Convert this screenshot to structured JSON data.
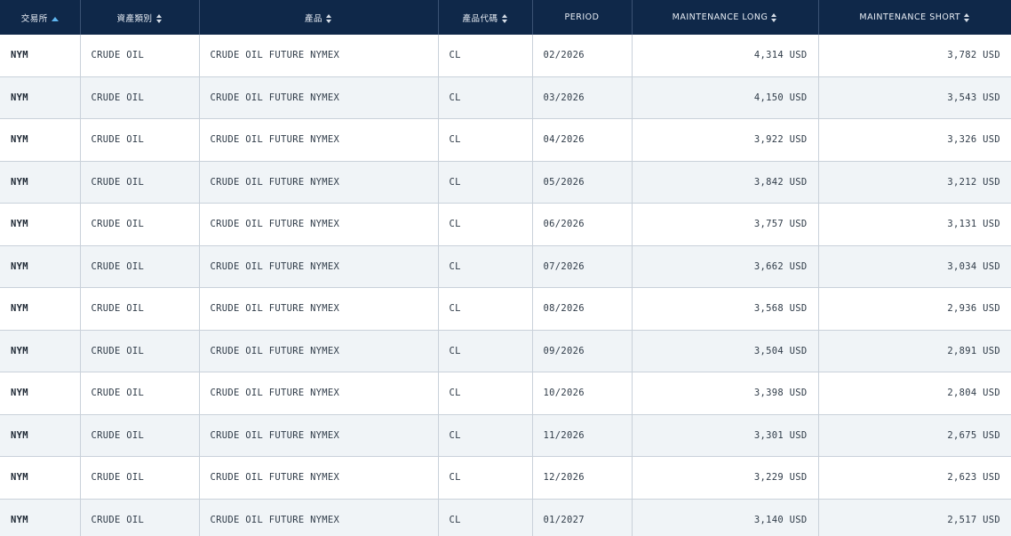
{
  "table": {
    "headers": [
      {
        "label": "交易所",
        "sort": "asc"
      },
      {
        "label": "資產類別",
        "sort": "both"
      },
      {
        "label": "產品",
        "sort": "both"
      },
      {
        "label": "產品代碼",
        "sort": "both"
      },
      {
        "label": "PERIOD",
        "sort": "none"
      },
      {
        "label": "MAINTENANCE LONG",
        "sort": "both"
      },
      {
        "label": "MAINTENANCE SHORT",
        "sort": "both"
      }
    ],
    "rows": [
      {
        "exchange": "NYM",
        "asset": "CRUDE OIL",
        "product": "CRUDE OIL FUTURE NYMEX",
        "code": "CL",
        "period": "02/2026",
        "long": "4,314 USD",
        "short": "3,782 USD"
      },
      {
        "exchange": "NYM",
        "asset": "CRUDE OIL",
        "product": "CRUDE OIL FUTURE NYMEX",
        "code": "CL",
        "period": "03/2026",
        "long": "4,150 USD",
        "short": "3,543 USD"
      },
      {
        "exchange": "NYM",
        "asset": "CRUDE OIL",
        "product": "CRUDE OIL FUTURE NYMEX",
        "code": "CL",
        "period": "04/2026",
        "long": "3,922 USD",
        "short": "3,326 USD"
      },
      {
        "exchange": "NYM",
        "asset": "CRUDE OIL",
        "product": "CRUDE OIL FUTURE NYMEX",
        "code": "CL",
        "period": "05/2026",
        "long": "3,842 USD",
        "short": "3,212 USD"
      },
      {
        "exchange": "NYM",
        "asset": "CRUDE OIL",
        "product": "CRUDE OIL FUTURE NYMEX",
        "code": "CL",
        "period": "06/2026",
        "long": "3,757 USD",
        "short": "3,131 USD"
      },
      {
        "exchange": "NYM",
        "asset": "CRUDE OIL",
        "product": "CRUDE OIL FUTURE NYMEX",
        "code": "CL",
        "period": "07/2026",
        "long": "3,662 USD",
        "short": "3,034 USD"
      },
      {
        "exchange": "NYM",
        "asset": "CRUDE OIL",
        "product": "CRUDE OIL FUTURE NYMEX",
        "code": "CL",
        "period": "08/2026",
        "long": "3,568 USD",
        "short": "2,936 USD"
      },
      {
        "exchange": "NYM",
        "asset": "CRUDE OIL",
        "product": "CRUDE OIL FUTURE NYMEX",
        "code": "CL",
        "period": "09/2026",
        "long": "3,504 USD",
        "short": "2,891 USD"
      },
      {
        "exchange": "NYM",
        "asset": "CRUDE OIL",
        "product": "CRUDE OIL FUTURE NYMEX",
        "code": "CL",
        "period": "10/2026",
        "long": "3,398 USD",
        "short": "2,804 USD"
      },
      {
        "exchange": "NYM",
        "asset": "CRUDE OIL",
        "product": "CRUDE OIL FUTURE NYMEX",
        "code": "CL",
        "period": "11/2026",
        "long": "3,301 USD",
        "short": "2,675 USD"
      },
      {
        "exchange": "NYM",
        "asset": "CRUDE OIL",
        "product": "CRUDE OIL FUTURE NYMEX",
        "code": "CL",
        "period": "12/2026",
        "long": "3,229 USD",
        "short": "2,623 USD"
      },
      {
        "exchange": "NYM",
        "asset": "CRUDE OIL",
        "product": "CRUDE OIL FUTURE NYMEX",
        "code": "CL",
        "period": "01/2027",
        "long": "3,140 USD",
        "short": "2,517 USD"
      }
    ]
  },
  "colors": {
    "header_bg": "#0f2849",
    "header_text": "#e9eef5",
    "sort_active": "#5fb6f0",
    "row_alt": "#f0f4f7",
    "border": "#c9d1da"
  }
}
